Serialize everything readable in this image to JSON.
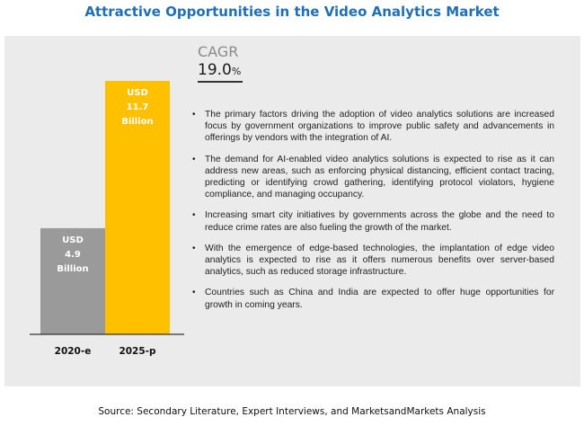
{
  "title": "Attractive Opportunities in the Video Analytics Market",
  "cagr": {
    "label": "CAGR",
    "value": "19.0",
    "unit": "%"
  },
  "bullets": [
    "The primary factors driving the adoption of video analytics solutions are increased focus by government organizations to improve public safety and advancements in offerings by vendors with the integration of AI.",
    "The demand for AI-enabled video analytics solutions is expected to rise as it can address new areas, such as enforcing physical distancing, efficient contact tracing, predicting or identifying crowd gathering, identifying protocol violators, hygiene compliance, and managing occupancy.",
    "Increasing smart city initiatives by governments across the globe and the need to reduce crime rates are also fueling the growth of the market.",
    "With the emergence of edge-based technologies, the implantation of edge video analytics is expected to rise as it offers numerous benefits over server-based analytics, such as reduced storage infrastructure.",
    "Countries such as China and India are expected to offer huge opportunities for growth in coming years."
  ],
  "bullet_glyph": "•",
  "source": "Source: Secondary Literature, Expert Interviews, and MarketsandMarkets Analysis",
  "chart_data": {
    "type": "bar",
    "categories": [
      "2020-e",
      "2025-p"
    ],
    "values": [
      4.9,
      11.7
    ],
    "value_labels": [
      [
        "USD",
        "4.9",
        "Billion"
      ],
      [
        "USD",
        "11.7",
        "Billion"
      ]
    ],
    "colors": [
      "#9a9a9a",
      "#ffc000"
    ],
    "ylim": [
      0,
      11.7
    ],
    "grid": false,
    "legend": "none"
  }
}
